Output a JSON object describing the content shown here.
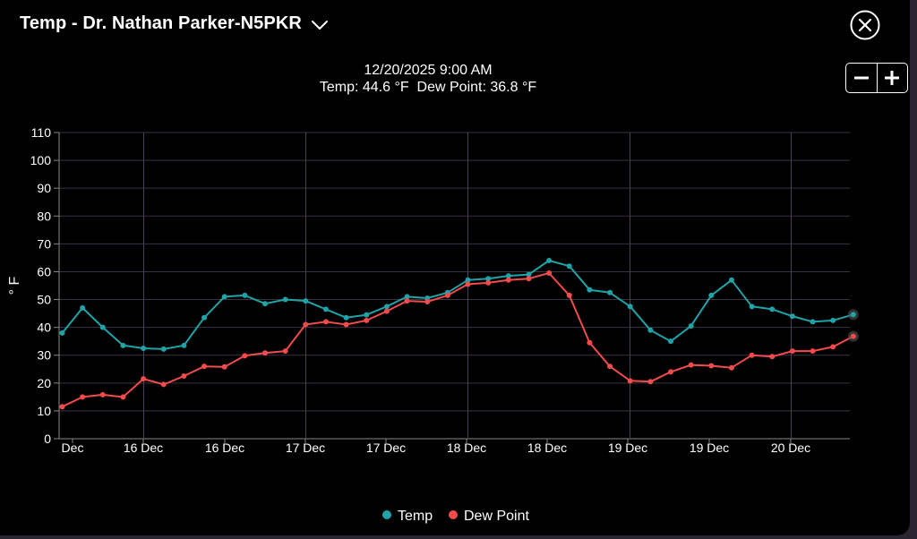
{
  "header": {
    "title": "Temp - Dr. Nathan Parker-N5PKR",
    "dropdown_icon": "chevron-down-icon",
    "close_icon": "close-icon"
  },
  "readout": {
    "datetime": "12/20/2025 9:00 AM",
    "values": "Temp: 44.6 °F  Dew Point: 36.8 °F"
  },
  "zoom": {
    "minus_icon": "minus-icon",
    "plus_icon": "plus-icon"
  },
  "chart_data": {
    "type": "line",
    "ylabel": "° F",
    "ylim": [
      0,
      110
    ],
    "yticks": [
      0,
      10,
      20,
      30,
      40,
      50,
      60,
      70,
      80,
      90,
      100,
      110
    ],
    "xticks": [
      "Dec",
      "16 Dec",
      "16 Dec",
      "17 Dec",
      "17 Dec",
      "18 Dec",
      "18 Dec",
      "19 Dec",
      "19 Dec",
      "20 Dec"
    ],
    "grid": true,
    "legend_position": "bottom-center",
    "series": [
      {
        "name": "Temp",
        "color": "#1fa3a8",
        "values": [
          38,
          47,
          40,
          33.5,
          32.5,
          32.2,
          33.5,
          43.5,
          51,
          51.5,
          48.5,
          50,
          49.5,
          46.5,
          43.5,
          44.5,
          47.5,
          51,
          50.5,
          52.5,
          57,
          57.5,
          58.5,
          59,
          64,
          62,
          53.5,
          52.5,
          47.5,
          39,
          35,
          40.5,
          51.5,
          57,
          47.5,
          46.5,
          44,
          42,
          42.5,
          44.6
        ]
      },
      {
        "name": "Dew Point",
        "color": "#f24b4b",
        "values": [
          11.5,
          15,
          15.8,
          15,
          21.5,
          19.5,
          22.5,
          26,
          25.8,
          29.8,
          30.8,
          31.5,
          41,
          42,
          41,
          42.5,
          45.8,
          49.5,
          49.2,
          51.5,
          55.5,
          56,
          57,
          57.5,
          59.5,
          51.5,
          34.5,
          26,
          20.8,
          20.5,
          24,
          26.5,
          26.2,
          25.5,
          30,
          29.5,
          31.5,
          31.5,
          33,
          36.8
        ]
      }
    ]
  }
}
